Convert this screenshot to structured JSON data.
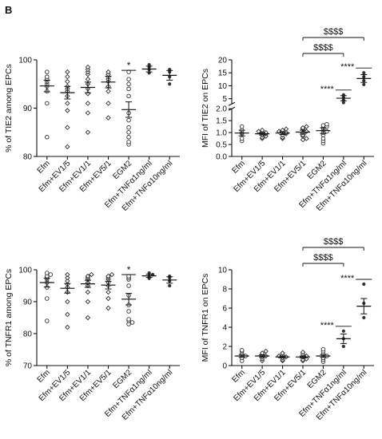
{
  "figure": {
    "panel_label": "B"
  },
  "chart_data": [
    {
      "type": "scatter",
      "ylabel": "% of TIE2 among EPCs",
      "ylim": [
        80,
        100
      ],
      "yticks": [
        "80",
        "90",
        "100"
      ],
      "categories": [
        "Efm",
        "Efm+EV1/5",
        "Efm+EV1/1",
        "Efm+EV5/1",
        "EGM2",
        "Efm+TNFα1ng/ml",
        "Efm+TNFα10ng/ml"
      ],
      "groups": [
        {
          "mean": 94.6,
          "sem": 1.2,
          "marker": "open-circle",
          "points": [
            84.0,
            91.0,
            93.5,
            94.5,
            95.0,
            95.5,
            96.0,
            96.5,
            97.5
          ]
        },
        {
          "mean": 93.2,
          "sem": 1.3,
          "marker": "open-diamond",
          "points": [
            82.0,
            86.0,
            89.5,
            91.0,
            92.5,
            93.5,
            94.0,
            94.5,
            95.5,
            96.5,
            97.5
          ]
        },
        {
          "mean": 94.3,
          "sem": 1.1,
          "marker": "open-diamond",
          "points": [
            85.0,
            89.0,
            91.0,
            93.0,
            94.0,
            95.0,
            96.0,
            97.0,
            97.5,
            98.0,
            98.5
          ]
        },
        {
          "mean": 95.4,
          "sem": 1.2,
          "marker": "open-diamond",
          "points": [
            88.0,
            91.0,
            93.5,
            94.5,
            95.5,
            96.0,
            96.5,
            97.0,
            97.5
          ]
        },
        {
          "mean": 89.7,
          "sem": 1.6,
          "marker": "open-circle",
          "points": [
            82.5,
            83.0,
            84.0,
            85.0,
            86.0,
            87.5,
            89.0,
            92.5,
            94.0,
            95.0,
            96.0,
            97.5
          ]
        },
        {
          "mean": 98.1,
          "sem": 0.6,
          "marker": "solid-circle",
          "points": [
            97.3,
            98.0,
            98.5,
            99.0
          ]
        },
        {
          "mean": 96.8,
          "sem": 1.0,
          "marker": "solid-circle",
          "points": [
            95.0,
            96.5,
            97.5,
            98.0
          ]
        }
      ],
      "annotations": [
        {
          "group": 4,
          "text": "*"
        }
      ],
      "grid": false
    },
    {
      "type": "scatter",
      "ylabel": "MFI of TIE2 on EPCs",
      "y_axis_break": [
        2,
        3
      ],
      "ylim_lower": [
        0,
        2
      ],
      "ylim_upper": [
        3,
        20
      ],
      "yticks": [
        "0.0",
        "0.5",
        "1.0",
        "1.5",
        "2.0",
        "5",
        "10",
        "15",
        "20"
      ],
      "categories": [
        "Efm",
        "Efm+EV1/5",
        "Efm+EV1/1",
        "Efm+EV5/1",
        "EGM2",
        "Efm+TNFα1ng/ml",
        "Efm+TNFα10ng/ml"
      ],
      "groups": [
        {
          "mean": 0.98,
          "sem": 0.12,
          "marker": "open-circle",
          "points": [
            0.65,
            0.75,
            0.95,
            1.0,
            1.1,
            1.25
          ]
        },
        {
          "mean": 0.95,
          "sem": 0.05,
          "marker": "open-diamond",
          "points": [
            0.75,
            0.8,
            0.85,
            0.9,
            0.95,
            1.0,
            1.0,
            1.05,
            1.1
          ]
        },
        {
          "mean": 0.98,
          "sem": 0.06,
          "marker": "open-diamond",
          "points": [
            0.75,
            0.8,
            0.9,
            0.95,
            1.0,
            1.0,
            1.05,
            1.1,
            1.15
          ]
        },
        {
          "mean": 1.02,
          "sem": 0.08,
          "marker": "open-diamond",
          "points": [
            0.7,
            0.75,
            0.85,
            0.9,
            1.0,
            1.05,
            1.15,
            1.2,
            1.25
          ]
        },
        {
          "mean": 1.08,
          "sem": 0.12,
          "marker": "open-circle",
          "points": [
            0.55,
            0.65,
            0.75,
            0.9,
            1.0,
            1.05,
            1.1,
            1.2,
            1.25,
            1.3,
            1.35
          ]
        },
        {
          "mean": 5.2,
          "sem": 1.0,
          "marker": "solid-circle",
          "points": [
            3.5,
            4.5,
            5.5,
            6.5
          ]
        },
        {
          "mean": 12.8,
          "sem": 1.5,
          "marker": "solid-circle",
          "points": [
            10.5,
            12.0,
            13.5,
            15.0
          ]
        }
      ],
      "annotations": [
        {
          "group": 5,
          "text": "****"
        },
        {
          "group": 6,
          "text": "****"
        },
        {
          "from_group": 3,
          "to_group": 5,
          "text": "$$$$"
        },
        {
          "from_group": 3,
          "to_group": 6,
          "text": "$$$$"
        }
      ],
      "grid": false
    },
    {
      "type": "scatter",
      "ylabel": "% of TNFR1 among EPCs",
      "ylim": [
        70,
        100
      ],
      "yticks": [
        "70",
        "80",
        "90",
        "100"
      ],
      "categories": [
        "Efm",
        "Efm+EV1/5",
        "Efm+EV1/1",
        "Efm+EV5/1",
        "EGM2",
        "Efm+TNFα1ng/ml",
        "Efm+TNFα10ng/ml"
      ],
      "groups": [
        {
          "mean": 96.0,
          "sem": 1.4,
          "marker": "open-circle",
          "points": [
            84.0,
            91.0,
            94.5,
            96.0,
            97.0,
            97.5,
            98.0,
            98.5,
            99.0
          ]
        },
        {
          "mean": 94.2,
          "sem": 1.5,
          "marker": "open-diamond",
          "points": [
            82.0,
            86.0,
            90.0,
            93.0,
            94.5,
            95.5,
            96.5,
            97.5,
            98.5
          ]
        },
        {
          "mean": 95.6,
          "sem": 1.1,
          "marker": "open-diamond",
          "points": [
            85.0,
            90.0,
            93.0,
            95.0,
            96.0,
            97.0,
            97.5,
            98.0,
            98.5
          ]
        },
        {
          "mean": 95.2,
          "sem": 1.2,
          "marker": "open-diamond",
          "points": [
            88.0,
            91.0,
            93.0,
            95.0,
            96.0,
            97.0,
            97.5,
            98.0,
            98.5
          ]
        },
        {
          "mean": 90.8,
          "sem": 1.8,
          "marker": "open-circle",
          "points": [
            83.0,
            83.5,
            84.0,
            84.5,
            87.0,
            89.0,
            92.0,
            95.0,
            97.0,
            97.5,
            98.0
          ]
        },
        {
          "mean": 98.1,
          "sem": 0.5,
          "marker": "solid-circle",
          "points": [
            97.3,
            98.0,
            98.5,
            99.0
          ]
        },
        {
          "mean": 96.8,
          "sem": 1.0,
          "marker": "solid-circle",
          "points": [
            95.0,
            96.5,
            97.5,
            98.0
          ]
        }
      ],
      "annotations": [
        {
          "group": 4,
          "text": "*"
        }
      ],
      "grid": false
    },
    {
      "type": "scatter",
      "ylabel": "MFI of TNFR1 on EPCs",
      "ylim": [
        0,
        10
      ],
      "yticks": [
        "0",
        "2",
        "4",
        "6",
        "8",
        "10"
      ],
      "categories": [
        "Efm",
        "Efm+EV1/5",
        "Efm+EV1/1",
        "Efm+EV5/1",
        "EGM2",
        "Efm+TNFα1ng/ml",
        "Efm+TNFα10ng/ml"
      ],
      "groups": [
        {
          "mean": 1.0,
          "sem": 0.15,
          "marker": "open-circle",
          "points": [
            0.5,
            0.8,
            1.0,
            1.2,
            1.5,
            1.6
          ]
        },
        {
          "mean": 1.0,
          "sem": 0.12,
          "marker": "open-diamond",
          "points": [
            0.5,
            0.7,
            0.9,
            1.0,
            1.1,
            1.3,
            1.5
          ]
        },
        {
          "mean": 0.9,
          "sem": 0.1,
          "marker": "open-diamond",
          "points": [
            0.5,
            0.6,
            0.8,
            0.9,
            1.0,
            1.1,
            1.3
          ]
        },
        {
          "mean": 0.9,
          "sem": 0.1,
          "marker": "open-diamond",
          "points": [
            0.5,
            0.6,
            0.7,
            0.9,
            1.0,
            1.2,
            1.4
          ]
        },
        {
          "mean": 1.0,
          "sem": 0.15,
          "marker": "open-circle",
          "points": [
            0.4,
            0.6,
            0.8,
            1.0,
            1.2,
            1.5,
            1.7
          ]
        },
        {
          "mean": 2.8,
          "sem": 0.5,
          "marker": "solid-circle",
          "points": [
            2.0,
            2.8,
            3.6
          ]
        },
        {
          "mean": 6.2,
          "sem": 0.8,
          "marker": "solid-circle",
          "points": [
            5.0,
            6.5,
            8.5
          ]
        }
      ],
      "annotations": [
        {
          "group": 5,
          "text": "****"
        },
        {
          "group": 6,
          "text": "****"
        },
        {
          "from_group": 3,
          "to_group": 5,
          "text": "$$$$"
        },
        {
          "from_group": 3,
          "to_group": 6,
          "text": "$$$$"
        }
      ],
      "grid": false
    }
  ]
}
